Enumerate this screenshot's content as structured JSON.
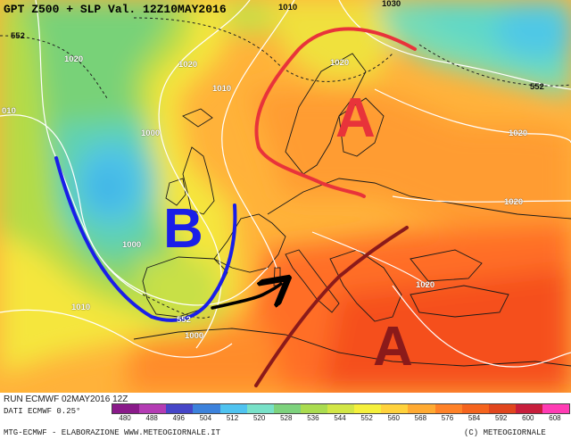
{
  "map": {
    "title": "GPT Z500 + SLP Val. 12Z10MAY2016",
    "pressure_labels": [
      {
        "id": "iso-1010-top",
        "text": "1010"
      },
      {
        "id": "iso-1030-top",
        "text": "1030"
      },
      {
        "id": "iso-552-nw",
        "text": "552"
      },
      {
        "id": "iso-1020-nw",
        "text": "1020"
      },
      {
        "id": "iso-1020-north-atlantic",
        "text": "1020"
      },
      {
        "id": "iso-1010-west",
        "text": "010"
      },
      {
        "id": "iso-1010-uk",
        "text": "1010"
      },
      {
        "id": "iso-1020-scandinavia",
        "text": "1020"
      },
      {
        "id": "iso-552-ne",
        "text": "552"
      },
      {
        "id": "iso-1000-atlantic",
        "text": "1000"
      },
      {
        "id": "iso-1020-russia",
        "text": "1020"
      },
      {
        "id": "iso-1020-east",
        "text": "1020"
      },
      {
        "id": "iso-1000-biscay",
        "text": "1000"
      },
      {
        "id": "iso-1010-sw",
        "text": "1010"
      },
      {
        "id": "iso-1020-balkans",
        "text": "1020"
      },
      {
        "id": "iso-552-spain",
        "text": "552"
      },
      {
        "id": "iso-1000-africa",
        "text": "1000"
      }
    ],
    "annotations": {
      "low_letter": "B",
      "high_north_letter": "A",
      "high_south_letter": "A",
      "low_color": "#1a1ee8",
      "high_north_color": "#e8333a",
      "high_south_color": "#8b1a1a",
      "arrow_color": "#000000"
    }
  },
  "footer": {
    "run_text": "RUN ECMWF 02MAY2016 12Z",
    "dati_text": "DATI ECMWF 0.25°",
    "credit_left": "MTG-ECMWF - ELABORAZIONE WWW.METEOGIORNALE.IT",
    "credit_right": "(C) METEOGIORNALE",
    "legend_ticks": [
      "480",
      "488",
      "496",
      "504",
      "512",
      "520",
      "528",
      "536",
      "544",
      "552",
      "560",
      "568",
      "576",
      "584",
      "592",
      "600",
      "608"
    ],
    "legend_colors": [
      "#8a1a8a",
      "#b43cb4",
      "#4646c8",
      "#3c82dc",
      "#4fc3f0",
      "#78e1c8",
      "#7dd27d",
      "#aadc50",
      "#d2e646",
      "#f5f03c",
      "#ffd23c",
      "#ffaa32",
      "#ff8228",
      "#f5641e",
      "#e1461e",
      "#c81e3c",
      "#ff3cb4"
    ]
  }
}
